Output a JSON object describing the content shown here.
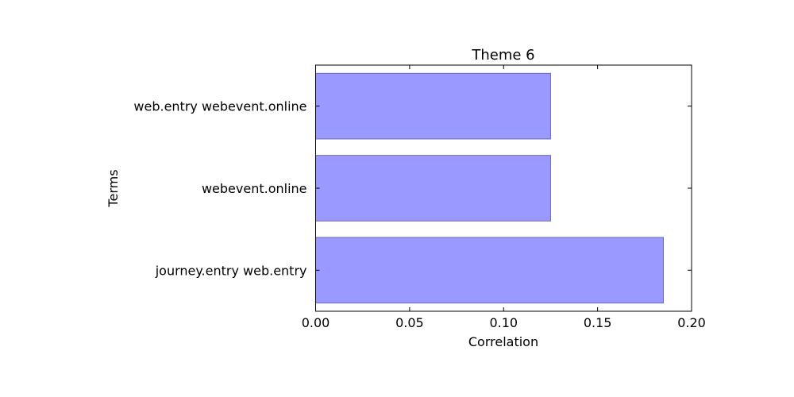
{
  "chart_data": {
    "type": "bar",
    "orientation": "horizontal",
    "title": "Theme 6",
    "xlabel": "Correlation",
    "ylabel": "Terms",
    "categories": [
      "journey.entry web.entry",
      "webevent.online",
      "web.entry webevent.online"
    ],
    "values": [
      0.185,
      0.125,
      0.125
    ],
    "xlim": [
      0.0,
      0.2
    ],
    "xticks": [
      "0.00",
      "0.05",
      "0.10",
      "0.15",
      "0.20"
    ],
    "grid": false,
    "legend": "none",
    "bar_color": "#9999ff",
    "bar_edge_color": "#6b6bb3"
  }
}
